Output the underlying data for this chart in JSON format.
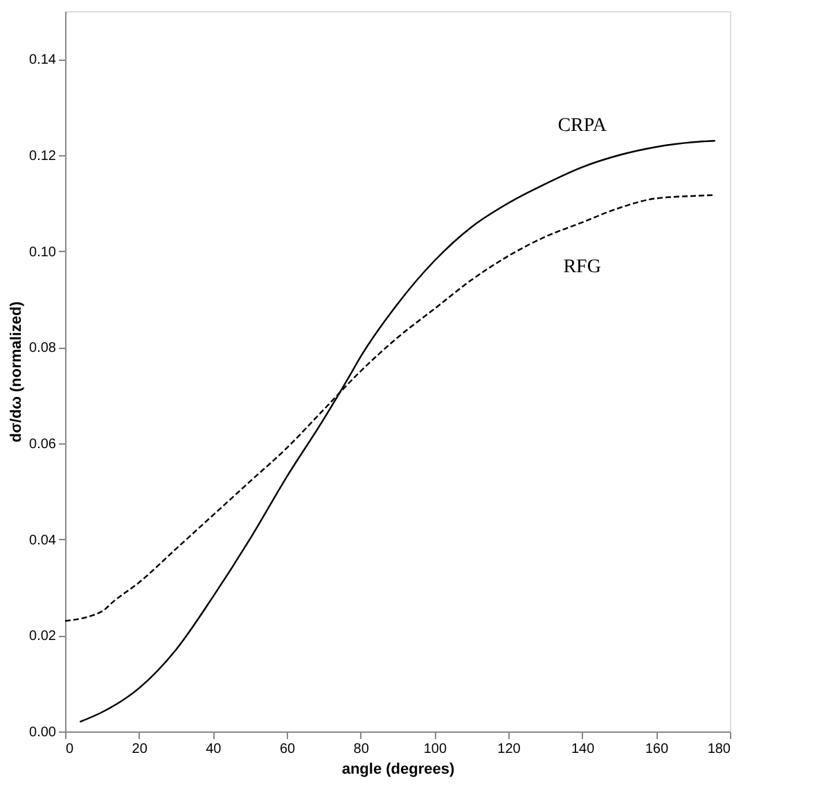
{
  "chart_data": {
    "type": "line",
    "xlabel": "angle (degrees)",
    "ylabel": "dσ/dω (normalized)",
    "xlim": [
      0,
      180
    ],
    "ylim": [
      0,
      0.15
    ],
    "xticks": [
      0,
      20,
      40,
      60,
      80,
      100,
      120,
      140,
      160,
      180
    ],
    "yticks": [
      {
        "value": 0,
        "label": "0.00"
      },
      0.02,
      0.04,
      0.06,
      0.08,
      {
        "value": 0.1,
        "label": "0.10"
      },
      0.12,
      0.14
    ],
    "grid": false,
    "series": [
      {
        "name": "CRPA",
        "color": "#000000",
        "line_style": "solid",
        "x": [
          4,
          10,
          20,
          30,
          40,
          50,
          60,
          70,
          77,
          80,
          90,
          100,
          110,
          120,
          130,
          140,
          150,
          160,
          170,
          176
        ],
        "values": [
          0.002,
          0.004,
          0.009,
          0.017,
          0.028,
          0.04,
          0.053,
          0.065,
          0.074,
          0.078,
          0.089,
          0.098,
          0.105,
          0.11,
          0.114,
          0.1175,
          0.12,
          0.1217,
          0.1227,
          0.123
        ]
      },
      {
        "name": "RFG",
        "color": "#000000",
        "line_style": "dashed",
        "x": [
          0,
          10,
          13,
          20,
          30,
          40,
          50,
          60,
          70,
          80,
          90,
          100,
          110,
          120,
          130,
          140,
          150,
          160,
          170,
          176
        ],
        "values": [
          0.023,
          0.025,
          0.027,
          0.031,
          0.038,
          0.045,
          0.052,
          0.059,
          0.067,
          0.075,
          0.082,
          0.088,
          0.094,
          0.099,
          0.103,
          0.106,
          0.109,
          0.111,
          0.1115,
          0.1117
        ]
      }
    ]
  }
}
